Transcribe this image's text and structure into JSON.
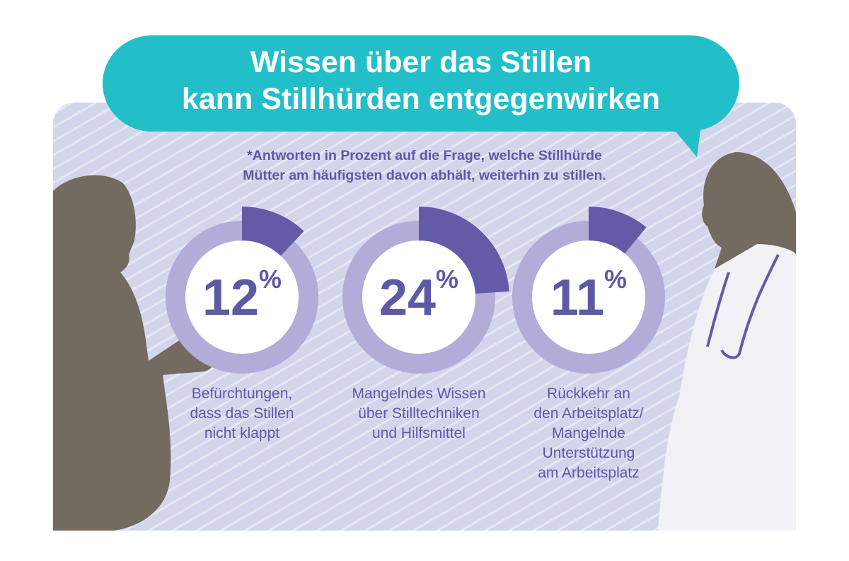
{
  "title": {
    "line1": "Wissen über das Stillen",
    "line2": "kann Stillhürden entgegenwirken"
  },
  "note": {
    "line1": "*Antworten in Prozent auf die Frage, welche Stillhürde",
    "line2": "Mütter am häufigsten davon abhält, weiterhin zu stillen."
  },
  "colors": {
    "teal": "#22bfc9",
    "purple": "#5e59a6",
    "ring": "#b3acd8",
    "silhouette": "#736a60"
  },
  "chart_data": {
    "type": "pie",
    "unit": "%",
    "items": [
      {
        "value": 12,
        "value_label": "12",
        "label_lines": [
          "Befürchtungen,",
          "dass das Stillen",
          "nicht klappt"
        ]
      },
      {
        "value": 24,
        "value_label": "24",
        "label_lines": [
          "Mangelndes Wissen",
          "über Stilltechniken",
          "und Hilfsmittel"
        ]
      },
      {
        "value": 11,
        "value_label": "11",
        "label_lines": [
          "Rückkehr an",
          "den Arbeitsplatz/",
          "Mangelnde",
          "Unterstützung",
          "am Arbeitsplatz"
        ]
      }
    ]
  }
}
